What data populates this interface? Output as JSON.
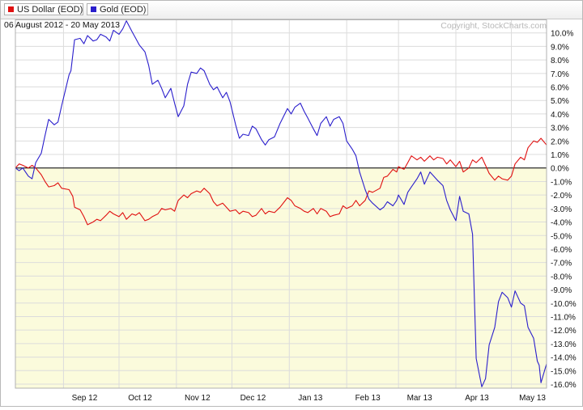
{
  "legend": {
    "items": [
      {
        "label": "US Dollar (EOD)",
        "color": "#e01010"
      },
      {
        "label": "Gold (EOD)",
        "color": "#2a1ecc"
      }
    ]
  },
  "date_range": "06 August 2012 - 20 May 2013",
  "copyright": "Copyright, StockCharts.com",
  "colors": {
    "positive_bg": "#ffffff",
    "negative_bg": "#fbfbdc",
    "grid": "#dcdcdc",
    "zero_line": "#000000"
  },
  "chart_data": {
    "type": "line",
    "title": "",
    "xlabel": "",
    "ylabel": "",
    "y_unit": "%",
    "ylim": [
      -16.3,
      11.0
    ],
    "y_ticks": [
      "10.0%",
      "9.0%",
      "8.0%",
      "7.0%",
      "6.0%",
      "5.0%",
      "4.0%",
      "3.0%",
      "2.0%",
      "1.0%",
      "0.0%",
      "-1.0%",
      "-2.0%",
      "-3.0%",
      "-4.0%",
      "-5.0%",
      "-6.0%",
      "-7.0%",
      "-8.0%",
      "-9.0%",
      "-10.0%",
      "-11.0%",
      "-12.0%",
      "-13.0%",
      "-14.0%",
      "-15.0%",
      "-16.0%"
    ],
    "x_range": [
      "2012-08-06",
      "2013-05-20"
    ],
    "x_ticks": [
      {
        "label": "Sep 12",
        "date": "2012-09-01"
      },
      {
        "label": "Oct 12",
        "date": "2012-10-01"
      },
      {
        "label": "Nov 12",
        "date": "2012-11-01"
      },
      {
        "label": "Dec 12",
        "date": "2012-12-01"
      },
      {
        "label": "Jan 13",
        "date": "2013-01-01"
      },
      {
        "label": "Feb 13",
        "date": "2013-02-01"
      },
      {
        "label": "Mar 13",
        "date": "2013-03-01"
      },
      {
        "label": "Apr 13",
        "date": "2013-04-01"
      },
      {
        "label": "May 13",
        "date": "2013-05-01"
      }
    ],
    "grid": true,
    "legend_position": "top-left",
    "series": [
      {
        "name": "US Dollar (EOD)",
        "color": "#e01010",
        "points": [
          [
            "2012-08-06",
            0.0
          ],
          [
            "2012-08-08",
            0.3
          ],
          [
            "2012-08-10",
            0.2
          ],
          [
            "2012-08-13",
            0.0
          ],
          [
            "2012-08-15",
            0.2
          ],
          [
            "2012-08-17",
            0.0
          ],
          [
            "2012-08-20",
            -0.5
          ],
          [
            "2012-08-22",
            -1.0
          ],
          [
            "2012-08-24",
            -1.4
          ],
          [
            "2012-08-27",
            -1.3
          ],
          [
            "2012-08-29",
            -1.1
          ],
          [
            "2012-08-31",
            -1.5
          ],
          [
            "2012-09-04",
            -1.6
          ],
          [
            "2012-09-06",
            -2.1
          ],
          [
            "2012-09-07",
            -2.9
          ],
          [
            "2012-09-10",
            -3.1
          ],
          [
            "2012-09-12",
            -3.6
          ],
          [
            "2012-09-14",
            -4.2
          ],
          [
            "2012-09-17",
            -4.0
          ],
          [
            "2012-09-19",
            -3.8
          ],
          [
            "2012-09-21",
            -3.9
          ],
          [
            "2012-09-24",
            -3.5
          ],
          [
            "2012-09-26",
            -3.2
          ],
          [
            "2012-09-28",
            -3.4
          ],
          [
            "2012-10-01",
            -3.6
          ],
          [
            "2012-10-03",
            -3.3
          ],
          [
            "2012-10-05",
            -3.8
          ],
          [
            "2012-10-08",
            -3.4
          ],
          [
            "2012-10-10",
            -3.5
          ],
          [
            "2012-10-12",
            -3.3
          ],
          [
            "2012-10-15",
            -3.9
          ],
          [
            "2012-10-17",
            -3.8
          ],
          [
            "2012-10-19",
            -3.6
          ],
          [
            "2012-10-22",
            -3.4
          ],
          [
            "2012-10-24",
            -3.0
          ],
          [
            "2012-10-26",
            -3.1
          ],
          [
            "2012-10-29",
            -3.0
          ],
          [
            "2012-10-31",
            -3.2
          ],
          [
            "2012-11-02",
            -2.4
          ],
          [
            "2012-11-05",
            -2.0
          ],
          [
            "2012-11-07",
            -2.2
          ],
          [
            "2012-11-09",
            -1.9
          ],
          [
            "2012-11-12",
            -1.7
          ],
          [
            "2012-11-14",
            -1.8
          ],
          [
            "2012-11-16",
            -1.5
          ],
          [
            "2012-11-19",
            -1.9
          ],
          [
            "2012-11-21",
            -2.5
          ],
          [
            "2012-11-23",
            -2.8
          ],
          [
            "2012-11-26",
            -2.6
          ],
          [
            "2012-11-28",
            -2.9
          ],
          [
            "2012-11-30",
            -3.2
          ],
          [
            "2012-12-03",
            -3.1
          ],
          [
            "2012-12-05",
            -3.4
          ],
          [
            "2012-12-07",
            -3.2
          ],
          [
            "2012-12-10",
            -3.3
          ],
          [
            "2012-12-12",
            -3.6
          ],
          [
            "2012-12-14",
            -3.5
          ],
          [
            "2012-12-17",
            -3.0
          ],
          [
            "2012-12-19",
            -3.4
          ],
          [
            "2012-12-21",
            -3.2
          ],
          [
            "2012-12-24",
            -3.3
          ],
          [
            "2012-12-27",
            -2.9
          ],
          [
            "2012-12-31",
            -2.2
          ],
          [
            "2013-01-02",
            -2.4
          ],
          [
            "2013-01-04",
            -2.8
          ],
          [
            "2013-01-07",
            -3.0
          ],
          [
            "2013-01-09",
            -3.2
          ],
          [
            "2013-01-11",
            -3.3
          ],
          [
            "2013-01-14",
            -3.0
          ],
          [
            "2013-01-16",
            -3.4
          ],
          [
            "2013-01-18",
            -3.0
          ],
          [
            "2013-01-21",
            -3.2
          ],
          [
            "2013-01-23",
            -3.6
          ],
          [
            "2013-01-25",
            -3.5
          ],
          [
            "2013-01-28",
            -3.4
          ],
          [
            "2013-01-30",
            -2.8
          ],
          [
            "2013-02-01",
            -3.0
          ],
          [
            "2013-02-04",
            -2.8
          ],
          [
            "2013-02-06",
            -2.4
          ],
          [
            "2013-02-08",
            -2.8
          ],
          [
            "2013-02-11",
            -2.4
          ],
          [
            "2013-02-13",
            -1.7
          ],
          [
            "2013-02-15",
            -1.8
          ],
          [
            "2013-02-19",
            -1.5
          ],
          [
            "2013-02-21",
            -0.7
          ],
          [
            "2013-02-23",
            -0.6
          ],
          [
            "2013-02-26",
            -0.1
          ],
          [
            "2013-02-28",
            -0.3
          ],
          [
            "2013-03-01",
            0.1
          ],
          [
            "2013-03-04",
            -0.1
          ],
          [
            "2013-03-06",
            0.4
          ],
          [
            "2013-03-08",
            0.9
          ],
          [
            "2013-03-11",
            0.6
          ],
          [
            "2013-03-13",
            0.8
          ],
          [
            "2013-03-15",
            0.5
          ],
          [
            "2013-03-18",
            0.9
          ],
          [
            "2013-03-20",
            0.6
          ],
          [
            "2013-03-22",
            0.8
          ],
          [
            "2013-03-25",
            0.7
          ],
          [
            "2013-03-27",
            0.3
          ],
          [
            "2013-03-29",
            0.6
          ],
          [
            "2013-04-01",
            0.1
          ],
          [
            "2013-04-03",
            0.5
          ],
          [
            "2013-04-05",
            -0.3
          ],
          [
            "2013-04-08",
            0.0
          ],
          [
            "2013-04-10",
            0.6
          ],
          [
            "2013-04-12",
            0.4
          ],
          [
            "2013-04-15",
            0.8
          ],
          [
            "2013-04-17",
            0.2
          ],
          [
            "2013-04-19",
            -0.4
          ],
          [
            "2013-04-22",
            -0.9
          ],
          [
            "2013-04-24",
            -0.6
          ],
          [
            "2013-04-26",
            -0.8
          ],
          [
            "2013-04-29",
            -0.9
          ],
          [
            "2013-05-01",
            -0.6
          ],
          [
            "2013-05-03",
            0.3
          ],
          [
            "2013-05-06",
            0.8
          ],
          [
            "2013-05-08",
            0.6
          ],
          [
            "2013-05-10",
            1.5
          ],
          [
            "2013-05-13",
            2.0
          ],
          [
            "2013-05-15",
            1.9
          ],
          [
            "2013-05-17",
            2.2
          ],
          [
            "2013-05-20",
            1.7
          ]
        ]
      },
      {
        "name": "Gold (EOD)",
        "color": "#2a1ecc",
        "points": [
          [
            "2012-08-06",
            0.0
          ],
          [
            "2012-08-08",
            -0.2
          ],
          [
            "2012-08-10",
            0.0
          ],
          [
            "2012-08-13",
            -0.6
          ],
          [
            "2012-08-15",
            -0.8
          ],
          [
            "2012-08-17",
            0.4
          ],
          [
            "2012-08-20",
            1.1
          ],
          [
            "2012-08-22",
            2.4
          ],
          [
            "2012-08-24",
            3.6
          ],
          [
            "2012-08-27",
            3.2
          ],
          [
            "2012-08-29",
            3.4
          ],
          [
            "2012-08-31",
            4.6
          ],
          [
            "2012-09-04",
            6.9
          ],
          [
            "2012-09-05",
            7.2
          ],
          [
            "2012-09-07",
            9.5
          ],
          [
            "2012-09-10",
            9.6
          ],
          [
            "2012-09-12",
            9.2
          ],
          [
            "2012-09-14",
            9.8
          ],
          [
            "2012-09-17",
            9.4
          ],
          [
            "2012-09-19",
            9.5
          ],
          [
            "2012-09-21",
            9.9
          ],
          [
            "2012-09-24",
            9.7
          ],
          [
            "2012-09-26",
            9.4
          ],
          [
            "2012-09-28",
            10.2
          ],
          [
            "2012-10-01",
            9.9
          ],
          [
            "2012-10-03",
            10.3
          ],
          [
            "2012-10-05",
            10.9
          ],
          [
            "2012-10-08",
            10.1
          ],
          [
            "2012-10-10",
            9.6
          ],
          [
            "2012-10-12",
            9.1
          ],
          [
            "2012-10-15",
            8.6
          ],
          [
            "2012-10-17",
            7.6
          ],
          [
            "2012-10-19",
            6.2
          ],
          [
            "2012-10-22",
            6.5
          ],
          [
            "2012-10-24",
            5.9
          ],
          [
            "2012-10-26",
            5.2
          ],
          [
            "2012-10-29",
            5.9
          ],
          [
            "2012-10-31",
            4.8
          ],
          [
            "2012-11-02",
            3.8
          ],
          [
            "2012-11-05",
            4.6
          ],
          [
            "2012-11-07",
            6.2
          ],
          [
            "2012-11-09",
            7.1
          ],
          [
            "2012-11-12",
            7.0
          ],
          [
            "2012-11-14",
            7.4
          ],
          [
            "2012-11-16",
            7.2
          ],
          [
            "2012-11-19",
            6.2
          ],
          [
            "2012-11-21",
            5.8
          ],
          [
            "2012-11-23",
            6.0
          ],
          [
            "2012-11-26",
            5.2
          ],
          [
            "2012-11-28",
            5.6
          ],
          [
            "2012-11-30",
            4.9
          ],
          [
            "2012-12-03",
            3.2
          ],
          [
            "2012-12-05",
            2.2
          ],
          [
            "2012-12-07",
            2.5
          ],
          [
            "2012-12-10",
            2.4
          ],
          [
            "2012-12-12",
            3.1
          ],
          [
            "2012-12-14",
            2.9
          ],
          [
            "2012-12-17",
            2.1
          ],
          [
            "2012-12-19",
            1.7
          ],
          [
            "2012-12-21",
            2.1
          ],
          [
            "2012-12-24",
            2.3
          ],
          [
            "2012-12-27",
            3.3
          ],
          [
            "2012-12-31",
            4.4
          ],
          [
            "2013-01-02",
            4.0
          ],
          [
            "2013-01-04",
            4.5
          ],
          [
            "2013-01-07",
            4.8
          ],
          [
            "2013-01-09",
            4.2
          ],
          [
            "2013-01-11",
            3.7
          ],
          [
            "2013-01-14",
            2.9
          ],
          [
            "2013-01-16",
            2.4
          ],
          [
            "2013-01-18",
            3.3
          ],
          [
            "2013-01-21",
            3.8
          ],
          [
            "2013-01-23",
            3.1
          ],
          [
            "2013-01-25",
            3.6
          ],
          [
            "2013-01-28",
            3.8
          ],
          [
            "2013-01-30",
            3.3
          ],
          [
            "2013-02-01",
            2.0
          ],
          [
            "2013-02-04",
            1.4
          ],
          [
            "2013-02-06",
            0.9
          ],
          [
            "2013-02-08",
            -0.3
          ],
          [
            "2013-02-11",
            -1.6
          ],
          [
            "2013-02-13",
            -2.3
          ],
          [
            "2013-02-15",
            -2.6
          ],
          [
            "2013-02-19",
            -3.1
          ],
          [
            "2013-02-21",
            -2.9
          ],
          [
            "2013-02-23",
            -2.5
          ],
          [
            "2013-02-26",
            -2.8
          ],
          [
            "2013-02-28",
            -2.4
          ],
          [
            "2013-03-01",
            -2.0
          ],
          [
            "2013-03-04",
            -2.7
          ],
          [
            "2013-03-06",
            -1.8
          ],
          [
            "2013-03-08",
            -1.4
          ],
          [
            "2013-03-11",
            -0.8
          ],
          [
            "2013-03-13",
            -0.3
          ],
          [
            "2013-03-15",
            -1.2
          ],
          [
            "2013-03-18",
            -0.3
          ],
          [
            "2013-03-20",
            -0.6
          ],
          [
            "2013-03-22",
            -0.9
          ],
          [
            "2013-03-25",
            -1.3
          ],
          [
            "2013-03-27",
            -2.4
          ],
          [
            "2013-03-29",
            -3.1
          ],
          [
            "2013-04-01",
            -3.9
          ],
          [
            "2013-04-03",
            -2.1
          ],
          [
            "2013-04-05",
            -3.2
          ],
          [
            "2013-04-08",
            -3.4
          ],
          [
            "2013-04-10",
            -4.9
          ],
          [
            "2013-04-11",
            -9.7
          ],
          [
            "2013-04-12",
            -14.1
          ],
          [
            "2013-04-15",
            -16.2
          ],
          [
            "2013-04-17",
            -15.6
          ],
          [
            "2013-04-19",
            -13.1
          ],
          [
            "2013-04-22",
            -11.8
          ],
          [
            "2013-04-24",
            -9.9
          ],
          [
            "2013-04-26",
            -9.2
          ],
          [
            "2013-04-29",
            -9.6
          ],
          [
            "2013-05-01",
            -10.3
          ],
          [
            "2013-05-03",
            -9.1
          ],
          [
            "2013-05-06",
            -10.0
          ],
          [
            "2013-05-08",
            -10.2
          ],
          [
            "2013-05-10",
            -11.8
          ],
          [
            "2013-05-13",
            -12.6
          ],
          [
            "2013-05-15",
            -14.3
          ],
          [
            "2013-05-16",
            -14.6
          ],
          [
            "2013-05-17",
            -15.9
          ],
          [
            "2013-05-20",
            -14.5
          ]
        ]
      }
    ]
  }
}
